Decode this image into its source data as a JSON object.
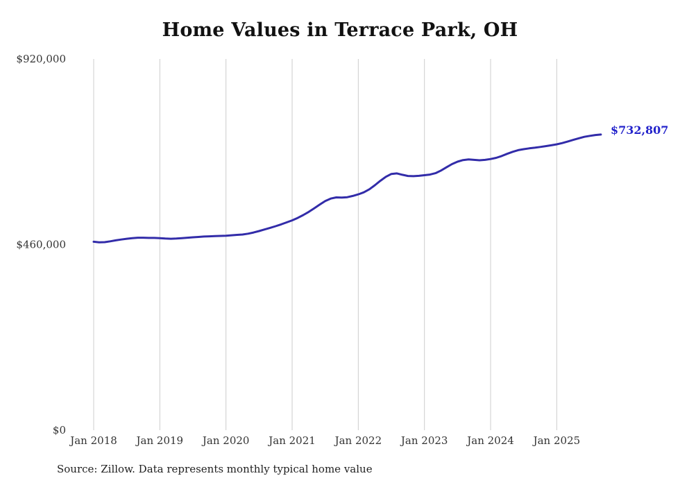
{
  "chart_data": {
    "type": "line",
    "title": "Home Values in Terrace Park, OH",
    "xlabel": "",
    "ylabel": "",
    "ylim": [
      0,
      920000
    ],
    "grid": "vertical-only",
    "legend": "none",
    "x_start": "Jan 2018",
    "x_end": "Sep 2025",
    "x_tick_labels": [
      "Jan 2018",
      "Jan 2019",
      "Jan 2020",
      "Jan 2021",
      "Jan 2022",
      "Jan 2023",
      "Jan 2024",
      "Jan 2025"
    ],
    "y_ticks": [
      {
        "value": 920000,
        "label": "$920,000"
      },
      {
        "value": 460000,
        "label": "$460,000"
      },
      {
        "value": 0,
        "label": "$0"
      }
    ],
    "series_name": "Typical home value (monthly)",
    "values": [
      467000,
      465500,
      466000,
      468000,
      470500,
      472500,
      474500,
      476000,
      477000,
      477000,
      476500,
      476500,
      476000,
      475000,
      474500,
      475000,
      476000,
      477000,
      478000,
      479000,
      480000,
      480500,
      481000,
      481500,
      482000,
      483000,
      484000,
      485000,
      487000,
      490000,
      493500,
      497500,
      501500,
      505500,
      510000,
      515000,
      520000,
      526000,
      533000,
      541000,
      550000,
      559000,
      568000,
      574000,
      577000,
      576500,
      577500,
      580500,
      584500,
      589500,
      597000,
      607000,
      618000,
      628000,
      635000,
      636500,
      633000,
      630000,
      629500,
      630500,
      632000,
      633500,
      637000,
      643500,
      651500,
      659500,
      665500,
      669500,
      671000,
      670000,
      669000,
      670000,
      672000,
      675000,
      679500,
      685000,
      690000,
      694000,
      696500,
      698500,
      700000,
      702000,
      704000,
      706000,
      708500,
      711500,
      715500,
      719500,
      723500,
      727000,
      729500,
      731500,
      732807
    ],
    "last_value": 732807,
    "end_label": "$732,807",
    "line_color": "#322ca9",
    "end_label_color": "#2323cb",
    "grid_color": "#cccccc",
    "source_note": "Source: Zillow. Data represents monthly typical home value"
  }
}
